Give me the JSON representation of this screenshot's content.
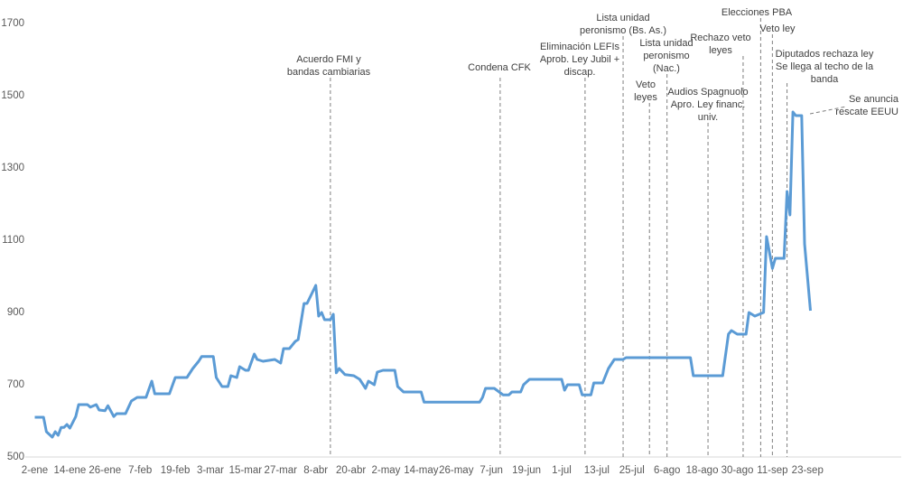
{
  "chart_data": {
    "type": "line",
    "xlim": [
      -2,
      296
    ],
    "ylim": [
      500,
      1700
    ],
    "yticks": [
      500,
      700,
      900,
      1100,
      1300,
      1500,
      1700
    ],
    "xticks": [
      {
        "value": 0,
        "label": "2-ene"
      },
      {
        "value": 12,
        "label": "14-ene"
      },
      {
        "value": 24,
        "label": "26-ene"
      },
      {
        "value": 36,
        "label": "7-feb"
      },
      {
        "value": 48,
        "label": "19-feb"
      },
      {
        "value": 60,
        "label": "3-mar"
      },
      {
        "value": 72,
        "label": "15-mar"
      },
      {
        "value": 84,
        "label": "27-mar"
      },
      {
        "value": 96,
        "label": "8-abr"
      },
      {
        "value": 108,
        "label": "20-abr"
      },
      {
        "value": 120,
        "label": "2-may"
      },
      {
        "value": 132,
        "label": "14-may"
      },
      {
        "value": 144,
        "label": "26-may"
      },
      {
        "value": 156,
        "label": "7-jun"
      },
      {
        "value": 168,
        "label": "19-jun"
      },
      {
        "value": 180,
        "label": "1-jul"
      },
      {
        "value": 192,
        "label": "13-jul"
      },
      {
        "value": 204,
        "label": "25-jul"
      },
      {
        "value": 216,
        "label": "6-ago"
      },
      {
        "value": 228,
        "label": "18-ago"
      },
      {
        "value": 240,
        "label": "30-ago"
      },
      {
        "value": 252,
        "label": "11-sep"
      },
      {
        "value": 264,
        "label": "23-sep"
      }
    ],
    "color": "#5b9bd5",
    "x": [
      0,
      3,
      4,
      6,
      7,
      8,
      9,
      10,
      11,
      12,
      14,
      15,
      18,
      19,
      21,
      22,
      24,
      25,
      27,
      28,
      31,
      33,
      35,
      38,
      40,
      41,
      46,
      48,
      52,
      54,
      56,
      57,
      61,
      62,
      64,
      66,
      67,
      69,
      70,
      72,
      73,
      75,
      76,
      78,
      82,
      84,
      85,
      87,
      89,
      90,
      92,
      93,
      96,
      97,
      98,
      99,
      101,
      102,
      103,
      104,
      106,
      109,
      111,
      113,
      114,
      116,
      117,
      119,
      123,
      124,
      126,
      132,
      133,
      152,
      153,
      154,
      157,
      160,
      162,
      163,
      166,
      167,
      169,
      180,
      181,
      182,
      186,
      187,
      190,
      191,
      194,
      196,
      198,
      201,
      202,
      224,
      225,
      235,
      237,
      238,
      240,
      243,
      244,
      246,
      249,
      250,
      252,
      253,
      256,
      257,
      258,
      259,
      260,
      262,
      263,
      265
    ],
    "values": [
      610,
      610,
      570,
      555,
      570,
      560,
      582,
      582,
      590,
      580,
      612,
      645,
      645,
      638,
      645,
      630,
      628,
      642,
      612,
      620,
      620,
      655,
      665,
      665,
      710,
      675,
      675,
      720,
      720,
      745,
      765,
      778,
      778,
      720,
      695,
      695,
      725,
      720,
      750,
      740,
      740,
      785,
      770,
      765,
      770,
      760,
      800,
      800,
      820,
      825,
      925,
      925,
      975,
      890,
      900,
      880,
      880,
      895,
      733,
      745,
      728,
      725,
      715,
      690,
      710,
      700,
      735,
      740,
      740,
      695,
      680,
      680,
      652,
      652,
      665,
      690,
      690,
      672,
      672,
      680,
      680,
      700,
      715,
      715,
      685,
      700,
      700,
      672,
      672,
      705,
      705,
      745,
      770,
      770,
      775,
      775,
      725,
      725,
      840,
      850,
      840,
      840,
      900,
      890,
      900,
      1110,
      1022,
      1050,
      1050,
      1235,
      1170,
      1455,
      1445,
      1445,
      1090,
      905
    ],
    "annotations": [
      {
        "text": [
          "Acuerdo FMI y",
          "bandas cambiarias"
        ],
        "x": 101
      },
      {
        "text": [
          "Condena CFK"
        ],
        "x": 159
      },
      {
        "text": [
          "Eliminación LEFIs",
          "Aprob. Ley Jubil +",
          "discap."
        ],
        "x": 188
      },
      {
        "text": [
          "Lista unidad",
          "peronismo (Bs. As.)"
        ],
        "x": 201
      },
      {
        "text": [
          "Veto",
          "leyes"
        ],
        "x": 210
      },
      {
        "text": [
          "Lista unidad",
          "peronismo",
          "(Nac.)"
        ],
        "x": 216
      },
      {
        "text": [
          "Audios Spagnuolo",
          "Apro. Ley financ.",
          "univ."
        ],
        "x": 230
      },
      {
        "text": [
          "Rechazo veto",
          "leyes"
        ],
        "x": 242
      },
      {
        "text": [
          "Elecciones PBA"
        ],
        "x": 248
      },
      {
        "text": [
          "Veto ley"
        ],
        "x": 252
      },
      {
        "text": [
          "Diputados rechaza ley",
          "Se llega al techo de la",
          "banda"
        ],
        "x": 257
      },
      {
        "text": [
          "Se anuncia",
          "rescate EEUU"
        ],
        "x": 263
      }
    ]
  }
}
